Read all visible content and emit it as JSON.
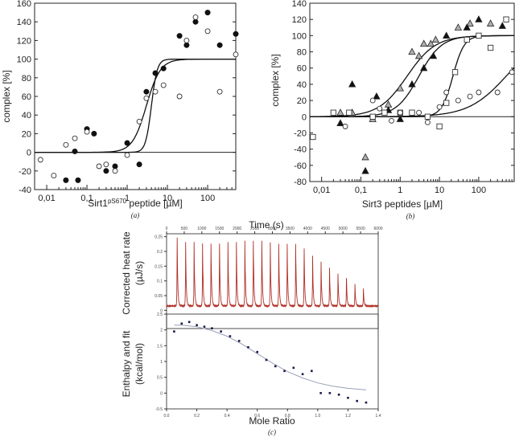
{
  "chart_data": [
    {
      "type": "scatter",
      "xscale": "log",
      "xlim": [
        0.005,
        500
      ],
      "ylim": [
        -40,
        160
      ],
      "xticks": [
        "0,01",
        "0,1",
        "1",
        "10",
        "100"
      ],
      "yticks": [
        "-40",
        "-20",
        "0",
        "20",
        "40",
        "60",
        "80",
        "100",
        "120",
        "140",
        "160"
      ],
      "xlabel_base": "Sirt1",
      "xlabel_sup": "pS670",
      "xlabel_rest": " peptide [µM]",
      "ylabel": "complex [%]",
      "caption": "(a)",
      "series": [
        {
          "marker": "filled-circle",
          "points": [
            [
              0.03,
              -30
            ],
            [
              0.05,
              1
            ],
            [
              0.06,
              -30
            ],
            [
              0.1,
              25
            ],
            [
              0.15,
              20
            ],
            [
              0.3,
              -20
            ],
            [
              0.5,
              -15
            ],
            [
              1,
              10
            ],
            [
              2,
              -13
            ],
            [
              3,
              65
            ],
            [
              5,
              85
            ],
            [
              8,
              90
            ],
            [
              20,
              125
            ],
            [
              30,
              115
            ],
            [
              50,
              140
            ],
            [
              100,
              150
            ],
            [
              200,
              115
            ],
            [
              500,
              127
            ]
          ]
        },
        {
          "marker": "open-circle",
          "points": [
            [
              0.007,
              -8
            ],
            [
              0.015,
              -25
            ],
            [
              0.03,
              8
            ],
            [
              0.05,
              15
            ],
            [
              0.1,
              22
            ],
            [
              0.2,
              -15
            ],
            [
              0.3,
              -13
            ],
            [
              0.5,
              -20
            ],
            [
              1,
              -3
            ],
            [
              2,
              33
            ],
            [
              3,
              58
            ],
            [
              5,
              65
            ],
            [
              8,
              72
            ],
            [
              20,
              60
            ],
            [
              30,
              120
            ],
            [
              50,
              145
            ],
            [
              100,
              130
            ],
            [
              200,
              65
            ],
            [
              500,
              105
            ]
          ]
        }
      ],
      "curves": [
        {
          "model": "sigmoid",
          "ec50": 3.0,
          "hill": 2.5,
          "top": 100,
          "bottom": 0
        },
        {
          "model": "sigmoid",
          "ec50": 4.0,
          "hill": 6.0,
          "top": 100,
          "bottom": 0
        }
      ],
      "baseline": 0
    },
    {
      "type": "scatter",
      "xscale": "log",
      "xlim": [
        0.005,
        800
      ],
      "ylim": [
        -80,
        140
      ],
      "xticks": [
        "0,01",
        "0,1",
        "1",
        "10",
        "100"
      ],
      "yticks": [
        "-80",
        "-60",
        "-40",
        "-20",
        "0",
        "20",
        "40",
        "60",
        "80",
        "100",
        "120",
        "140"
      ],
      "xlabel": "Sirt3 peptides [µM]",
      "ylabel": "complex [%]",
      "caption": "(b)",
      "series": [
        {
          "marker": "gray-triangle",
          "points": [
            [
              0.03,
              5
            ],
            [
              0.06,
              5
            ],
            [
              0.13,
              -50
            ],
            [
              0.2,
              -3
            ],
            [
              0.5,
              15
            ],
            [
              1,
              35
            ],
            [
              2,
              80
            ],
            [
              3,
              75
            ],
            [
              4,
              90
            ],
            [
              6,
              90
            ],
            [
              8,
              95
            ],
            [
              30,
              110
            ],
            [
              60,
              115
            ],
            [
              200,
              115
            ]
          ]
        },
        {
          "marker": "filled-triangle",
          "points": [
            [
              0.03,
              -8
            ],
            [
              0.06,
              40
            ],
            [
              0.13,
              -67
            ],
            [
              0.25,
              25
            ],
            [
              0.5,
              8
            ],
            [
              1,
              -3
            ],
            [
              2,
              40
            ],
            [
              4,
              60
            ],
            [
              7,
              75
            ],
            [
              15,
              100
            ],
            [
              50,
              110
            ],
            [
              100,
              120
            ],
            [
              400,
              112
            ]
          ]
        },
        {
          "marker": "open-square",
          "points": [
            [
              0.006,
              -25
            ],
            [
              0.02,
              5
            ],
            [
              0.05,
              5
            ],
            [
              0.2,
              0
            ],
            [
              0.4,
              5
            ],
            [
              1,
              5
            ],
            [
              2,
              5
            ],
            [
              5,
              0
            ],
            [
              10,
              -12
            ],
            [
              15,
              17
            ],
            [
              25,
              55
            ],
            [
              50,
              95
            ],
            [
              100,
              100
            ],
            [
              200,
              85
            ],
            [
              500,
              120
            ]
          ]
        },
        {
          "marker": "open-circle",
          "points": [
            [
              0.04,
              -12
            ],
            [
              0.2,
              20
            ],
            [
              0.3,
              10
            ],
            [
              0.6,
              -5
            ],
            [
              1,
              5
            ],
            [
              3,
              5
            ],
            [
              5,
              -7
            ],
            [
              10,
              12
            ],
            [
              15,
              30
            ],
            [
              30,
              20
            ],
            [
              60,
              25
            ],
            [
              100,
              30
            ],
            [
              300,
              30
            ],
            [
              700,
              55
            ]
          ]
        }
      ],
      "curves": [
        {
          "model": "sigmoid",
          "ec50": 1.5,
          "hill": 1.2,
          "top": 100,
          "bottom": 0
        },
        {
          "model": "sigmoid",
          "ec50": 3.0,
          "hill": 1.5,
          "top": 100,
          "bottom": 0
        },
        {
          "model": "sigmoid",
          "ec50": 22,
          "hill": 3.0,
          "top": 100,
          "bottom": 0
        },
        {
          "model": "sigmoid",
          "ec50": 500,
          "hill": 0.9,
          "top": 100,
          "bottom": 0
        }
      ],
      "baseline": 0
    },
    {
      "type": "line",
      "title": "Time (s)",
      "xticks": [
        "0",
        "500",
        "1000",
        "1500",
        "2000",
        "2500",
        "3000",
        "3500",
        "4000",
        "4500",
        "5000",
        "5500",
        "6000"
      ],
      "xlim": [
        0,
        6000
      ],
      "ylim": [
        -0.01,
        0.26
      ],
      "yticks": [
        "0",
        "0.05",
        "0.1",
        "0.15",
        "0.2",
        "0.25"
      ],
      "ylabel_lines": [
        "Corrected heat rate",
        "(µJ/s)"
      ],
      "line_color": "#b03028",
      "baseline": 0.015,
      "peak_times": [
        300,
        540,
        780,
        1020,
        1260,
        1500,
        1740,
        1980,
        2220,
        2460,
        2700,
        2940,
        3180,
        3420,
        3660,
        3900,
        4140,
        4380,
        4620,
        4860,
        5100,
        5340,
        5580
      ],
      "peak_heights": [
        0.23,
        0.215,
        0.215,
        0.21,
        0.21,
        0.21,
        0.215,
        0.215,
        0.22,
        0.22,
        0.22,
        0.215,
        0.21,
        0.21,
        0.21,
        0.195,
        0.17,
        0.15,
        0.13,
        0.11,
        0.095,
        0.075,
        0.06
      ]
    },
    {
      "type": "scatter",
      "xlim": [
        0,
        1.4
      ],
      "ylim": [
        -0.5,
        2.5
      ],
      "xticks": [
        "0.0",
        "0.2",
        "0.4",
        "0.6",
        "0.8",
        "1.0",
        "1.2",
        "1.4"
      ],
      "yticks": [
        "-0.5",
        "0",
        "0.5",
        "1",
        "1.5",
        "2",
        "2.5"
      ],
      "xlabel": "Mole Ratio",
      "ylabel_lines": [
        "Enthalpy and fit",
        "(kcal/mol)"
      ],
      "caption": "(c)",
      "points": [
        [
          0.05,
          1.95
        ],
        [
          0.1,
          2.2
        ],
        [
          0.15,
          2.25
        ],
        [
          0.2,
          2.15
        ],
        [
          0.25,
          2.1
        ],
        [
          0.3,
          2.05
        ],
        [
          0.36,
          1.95
        ],
        [
          0.42,
          1.8
        ],
        [
          0.48,
          1.65
        ],
        [
          0.54,
          1.45
        ],
        [
          0.6,
          1.3
        ],
        [
          0.66,
          1.05
        ],
        [
          0.72,
          0.85
        ],
        [
          0.78,
          0.7
        ],
        [
          0.84,
          0.8
        ],
        [
          0.9,
          0.6
        ],
        [
          0.96,
          0.7
        ],
        [
          1.02,
          0.0
        ],
        [
          1.08,
          0.0
        ],
        [
          1.14,
          -0.05
        ],
        [
          1.2,
          -0.15
        ],
        [
          1.26,
          -0.25
        ],
        [
          1.32,
          -0.3
        ]
      ],
      "fit": [
        [
          0.05,
          2.15
        ],
        [
          0.1,
          2.15
        ],
        [
          0.2,
          2.1
        ],
        [
          0.3,
          1.98
        ],
        [
          0.4,
          1.8
        ],
        [
          0.5,
          1.55
        ],
        [
          0.6,
          1.25
        ],
        [
          0.7,
          0.95
        ],
        [
          0.8,
          0.68
        ],
        [
          0.9,
          0.48
        ],
        [
          1.0,
          0.32
        ],
        [
          1.1,
          0.22
        ],
        [
          1.2,
          0.15
        ],
        [
          1.32,
          0.1
        ]
      ],
      "fit_color": "#9aa0b8"
    }
  ]
}
